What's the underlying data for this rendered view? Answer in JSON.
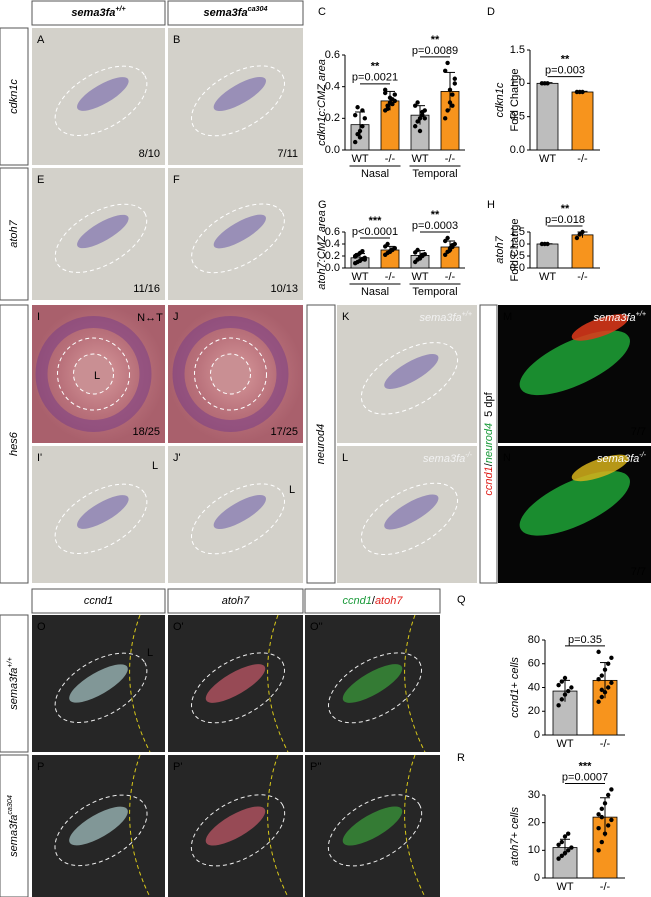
{
  "figure": {
    "column_headers": [
      {
        "base": "sema3fa",
        "sup": "+/+"
      },
      {
        "base": "sema3fa",
        "sup": "ca304"
      }
    ],
    "row_labels": [
      "cdkn1c",
      "atoh7",
      "hes6",
      "neurod4"
    ],
    "bottom_row_labels": [
      {
        "base": "sema3fa",
        "sup": "+/+"
      },
      {
        "base": "sema3fa",
        "sup": "ca304"
      }
    ],
    "bottom_headers": [
      "ccnd1",
      "atoh7",
      {
        "parts": [
          "ccnd1",
          "/",
          "atoh7"
        ]
      }
    ],
    "side_label": {
      "parts": [
        "ccnd1",
        "/",
        "neurod4"
      ],
      "suffix": "5 dpf"
    },
    "panels": [
      {
        "letter": "A",
        "count": "8/10"
      },
      {
        "letter": "B",
        "count": "7/11"
      },
      {
        "letter": "E",
        "count": "11/16"
      },
      {
        "letter": "F",
        "count": "10/13"
      },
      {
        "letter": "I",
        "count": "18/25",
        "labels": [
          "N↔T",
          "L"
        ]
      },
      {
        "letter": "J",
        "count": "17/25"
      },
      {
        "letter": "I'",
        "labels": [
          "L"
        ]
      },
      {
        "letter": "J'",
        "labels": [
          "L"
        ]
      },
      {
        "letter": "K",
        "genotype": {
          "base": "sema3fa",
          "sup": "+/+"
        }
      },
      {
        "letter": "L",
        "genotype": {
          "base": "sema3fa",
          "sup": "-/-"
        }
      },
      {
        "letter": "M",
        "count": "7/7",
        "genotype": {
          "base": "sema3fa",
          "sup": "+/+"
        }
      },
      {
        "letter": "N",
        "count": "7/7",
        "genotype": {
          "base": "sema3fa",
          "sup": "-/-"
        }
      },
      {
        "letter": "O",
        "labels": [
          "L"
        ]
      },
      {
        "letter": "O'"
      },
      {
        "letter": "O''"
      },
      {
        "letter": "P"
      },
      {
        "letter": "P'"
      },
      {
        "letter": "P''"
      }
    ]
  },
  "chart_data": [
    {
      "type": "bar",
      "letter": "C",
      "ylabel": [
        "cdkn1c:CMZ area"
      ],
      "categories": [
        "WT",
        "-/-",
        "WT",
        "-/-"
      ],
      "groups": [
        "Nasal",
        "Temporal"
      ],
      "colors": [
        "#bdbdbd",
        "#f7941d",
        "#bdbdbd",
        "#f7941d"
      ],
      "values": [
        0.16,
        0.31,
        0.22,
        0.37
      ],
      "errors": [
        0.08,
        0.06,
        0.06,
        0.12
      ],
      "points": [
        [
          0.05,
          0.1,
          0.12,
          0.15,
          0.2,
          0.22,
          0.27,
          0.08,
          0.25
        ],
        [
          0.25,
          0.28,
          0.3,
          0.32,
          0.35,
          0.38,
          0.26,
          0.33,
          0.29,
          0.31,
          0.36
        ],
        [
          0.15,
          0.18,
          0.2,
          0.22,
          0.25,
          0.28,
          0.3,
          0.12,
          0.24,
          0.2
        ],
        [
          0.2,
          0.25,
          0.3,
          0.35,
          0.42,
          0.5,
          0.55,
          0.38,
          0.28,
          0.45
        ]
      ],
      "ylim": [
        0,
        0.6
      ],
      "yticks": [
        {
          "value": 0,
          "label": "0.0"
        },
        {
          "value": 0.2,
          "label": "0.2"
        },
        {
          "value": 0.4,
          "label": "0.4"
        },
        {
          "value": 0.6,
          "label": "0.6"
        }
      ],
      "comparisons": [
        {
          "stars": "**",
          "label": "p=0.0021"
        },
        {
          "stars": "**",
          "label": "p=0.0089"
        }
      ]
    },
    {
      "type": "bar",
      "letter": "D",
      "ylabel": [
        "cdkn1c",
        "Fold Change"
      ],
      "categories": [
        "WT",
        "-/-"
      ],
      "colors": [
        "#bdbdbd",
        "#f7941d"
      ],
      "values": [
        1.0,
        0.87
      ],
      "errors": [
        0.01,
        0.01
      ],
      "points": [
        [
          1.0,
          1.0,
          1.0
        ],
        [
          0.87,
          0.87,
          0.87
        ]
      ],
      "ylim": [
        0,
        1.5
      ],
      "yticks": [
        {
          "value": 0,
          "label": "0.0"
        },
        {
          "value": 0.5,
          "label": "0.5"
        },
        {
          "value": 1,
          "label": "1.0"
        },
        {
          "value": 1.5,
          "label": "1.5"
        }
      ],
      "comparisons": [
        {
          "stars": "**",
          "label": "p=0.003"
        }
      ]
    },
    {
      "type": "bar",
      "letter": "G",
      "ylabel": [
        "atoh7:CMZ area"
      ],
      "categories": [
        "WT",
        "-/-",
        "WT",
        "-/-"
      ],
      "groups": [
        "Nasal",
        "Temporal"
      ],
      "colors": [
        "#bdbdbd",
        "#f7941d",
        "#bdbdbd",
        "#f7941d"
      ],
      "values": [
        0.17,
        0.3,
        0.21,
        0.35
      ],
      "errors": [
        0.07,
        0.06,
        0.08,
        0.1
      ],
      "points": [
        [
          0.08,
          0.1,
          0.12,
          0.15,
          0.17,
          0.2,
          0.22,
          0.25,
          0.28,
          0.14,
          0.19
        ],
        [
          0.22,
          0.25,
          0.28,
          0.3,
          0.33,
          0.36,
          0.4,
          0.27,
          0.31
        ],
        [
          0.1,
          0.14,
          0.18,
          0.2,
          0.23,
          0.26,
          0.3,
          0.16,
          0.22
        ],
        [
          0.22,
          0.27,
          0.3,
          0.35,
          0.4,
          0.45,
          0.5,
          0.33,
          0.38
        ]
      ],
      "ylim": [
        0,
        0.6
      ],
      "yticks": [
        {
          "value": 0,
          "label": "0.0"
        },
        {
          "value": 0.2,
          "label": "0.2"
        },
        {
          "value": 0.4,
          "label": "0.4"
        },
        {
          "value": 0.6,
          "label": "0.6"
        }
      ],
      "comparisons": [
        {
          "stars": "***",
          "label": "p<0.0001"
        },
        {
          "stars": "**",
          "label": "p=0.0003"
        }
      ]
    },
    {
      "type": "bar",
      "letter": "H",
      "ylabel": [
        "atoh7",
        "Fold Change"
      ],
      "categories": [
        "WT",
        "-/-"
      ],
      "colors": [
        "#bdbdbd",
        "#f7941d"
      ],
      "values": [
        1.0,
        1.38
      ],
      "errors": [
        0.01,
        0.12
      ],
      "points": [
        [
          1.0,
          1.0,
          1.0
        ],
        [
          1.25,
          1.4,
          1.5
        ]
      ],
      "ylim": [
        0,
        1.5
      ],
      "yticks": [
        {
          "value": 0,
          "label": "0.0"
        },
        {
          "value": 0.5,
          "label": "0.5"
        },
        {
          "value": 1,
          "label": "1.0"
        },
        {
          "value": 1.5,
          "label": "1.5"
        }
      ],
      "comparisons": [
        {
          "stars": "**",
          "label": "p=0.018"
        }
      ]
    },
    {
      "type": "bar",
      "letter": "Q",
      "ylabel": [
        "ccnd1+ cells"
      ],
      "categories": [
        "WT",
        "-/-"
      ],
      "colors": [
        "#bdbdbd",
        "#f7941d"
      ],
      "values": [
        37,
        46
      ],
      "errors": [
        9,
        15
      ],
      "points": [
        [
          25,
          30,
          34,
          37,
          40,
          42,
          45,
          48
        ],
        [
          28,
          32,
          36,
          40,
          44,
          47,
          50,
          55,
          60,
          65,
          70,
          38
        ]
      ],
      "ylim": [
        0,
        80
      ],
      "yticks": [
        0,
        20,
        40,
        60,
        80
      ],
      "comparisons": [
        {
          "label": "p=0.35"
        }
      ]
    },
    {
      "type": "bar",
      "letter": "R",
      "ylabel": [
        "atoh7+ cells"
      ],
      "categories": [
        "WT",
        "-/-"
      ],
      "colors": [
        "#bdbdbd",
        "#f7941d"
      ],
      "values": [
        11,
        22
      ],
      "errors": [
        3,
        7
      ],
      "points": [
        [
          7,
          8,
          9,
          10,
          11,
          12,
          13,
          15,
          16
        ],
        [
          10,
          13,
          16,
          19,
          21,
          23,
          25,
          27,
          30,
          32,
          18,
          22
        ]
      ],
      "ylim": [
        0,
        30
      ],
      "yticks": [
        0,
        10,
        20,
        30
      ],
      "comparisons": [
        {
          "stars": "***",
          "label": "p=0.0007"
        }
      ]
    }
  ]
}
